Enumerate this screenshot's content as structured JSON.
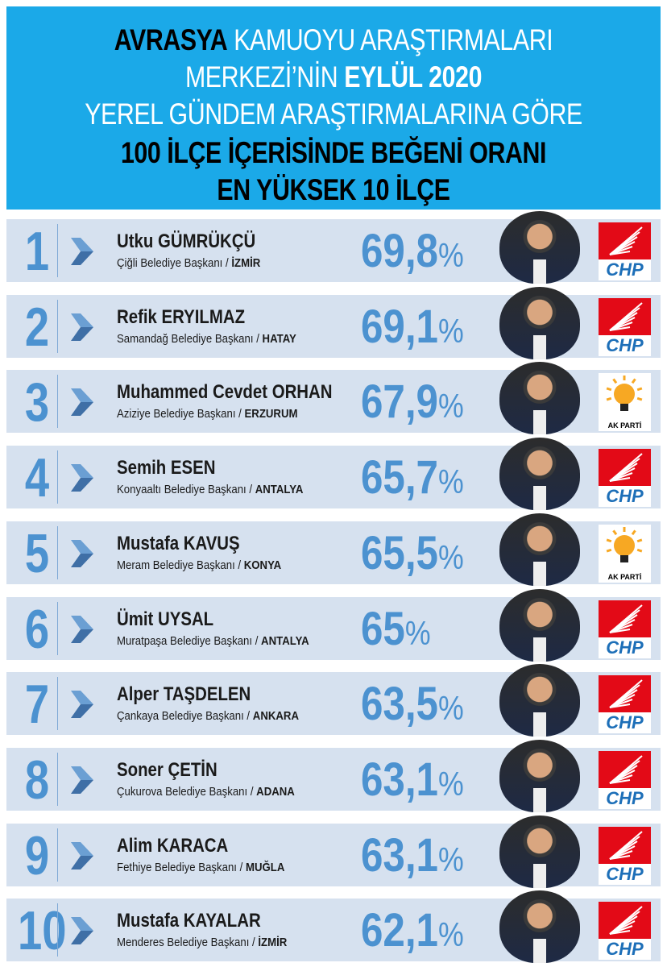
{
  "header": {
    "line1_bold": "AVRASYA",
    "line1_rest": "KAMUOYU ARAŞTIRMALARI",
    "line2_rest": "MERKEZİ’NİN",
    "line2_bold": "EYLÜL 2020",
    "line3": "YEREL GÜNDEM ARAŞTIRMALARINA GÖRE",
    "line4": "100 İLÇE İÇERİSİNDE BEĞENİ ORANI",
    "line5": "EN YÜKSEK 10 İLÇE"
  },
  "colors": {
    "header_bg": "#1ba9e8",
    "row_bg": "#d6e1ef",
    "accent": "#4c92d0",
    "chp_red": "#e30a17",
    "akp_yellow": "#f7a823"
  },
  "rows": [
    {
      "rank": "1",
      "name": "Utku GÜMRÜKÇÜ",
      "district": "Çiğli",
      "title": "Belediye Başkanı /",
      "city": "İZMİR",
      "pct": "69,8",
      "sym": "%",
      "party": "CHP"
    },
    {
      "rank": "2",
      "name": "Refik ERYILMAZ",
      "district": "Samandağ",
      "title": "Belediye Başkanı /",
      "city": "HATAY",
      "pct": "69,1",
      "sym": "%",
      "party": "CHP"
    },
    {
      "rank": "3",
      "name": "Muhammed Cevdet ORHAN",
      "district": "Aziziye",
      "title": "Belediye Başkanı /",
      "city": "ERZURUM",
      "pct": "67,9",
      "sym": "%",
      "party": "AK PARTİ"
    },
    {
      "rank": "4",
      "name": "Semih ESEN",
      "district": "Konyaaltı",
      "title": "Belediye Başkanı /",
      "city": "ANTALYA",
      "pct": "65,7",
      "sym": "%",
      "party": "CHP"
    },
    {
      "rank": "5",
      "name": "Mustafa KAVUŞ",
      "district": "Meram",
      "title": "Belediye Başkanı /",
      "city": "KONYA",
      "pct": "65,5",
      "sym": "%",
      "party": "AK PARTİ"
    },
    {
      "rank": "6",
      "name": "Ümit UYSAL",
      "district": "Muratpaşa",
      "title": "Belediye Başkanı /",
      "city": "ANTALYA",
      "pct": "65",
      "sym": "%",
      "party": "CHP"
    },
    {
      "rank": "7",
      "name": "Alper TAŞDELEN",
      "district": "Çankaya",
      "title": "Belediye Başkanı /",
      "city": "ANKARA",
      "pct": "63,5",
      "sym": "%",
      "party": "CHP"
    },
    {
      "rank": "8",
      "name": "Soner ÇETİN",
      "district": "Çukurova",
      "title": "Belediye Başkanı /",
      "city": "ADANA",
      "pct": "63,1",
      "sym": "%",
      "party": "CHP"
    },
    {
      "rank": "9",
      "name": "Alim KARACA",
      "district": "Fethiye",
      "title": "Belediye Başkanı /",
      "city": "MUĞLA",
      "pct": "63,1",
      "sym": "%",
      "party": "CHP"
    },
    {
      "rank": "10",
      "name": "Mustafa KAYALAR",
      "district": "Menderes",
      "title": "Belediye Başkanı /",
      "city": "İZMİR",
      "pct": "62,1",
      "sym": "%",
      "party": "CHP"
    }
  ]
}
